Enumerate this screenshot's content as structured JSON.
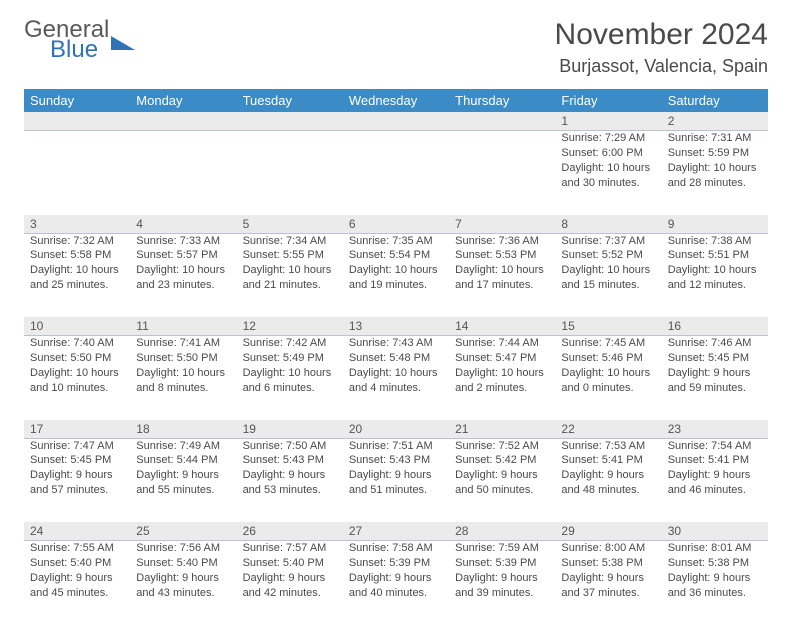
{
  "logo": {
    "text1": "General",
    "text2": "Blue"
  },
  "title": "November 2024",
  "location": "Burjassot, Valencia, Spain",
  "colors": {
    "header_bg": "#3b8bc6",
    "header_text": "#ffffff",
    "daynum_bg": "#ebebeb",
    "body_text": "#4a4a4a",
    "rule": "#b8c4d0"
  },
  "dayHeaders": [
    "Sunday",
    "Monday",
    "Tuesday",
    "Wednesday",
    "Thursday",
    "Friday",
    "Saturday"
  ],
  "weeks": [
    [
      null,
      null,
      null,
      null,
      null,
      {
        "n": "1",
        "sr": "7:29 AM",
        "ss": "6:00 PM",
        "dl1": "10 hours",
        "dl2": "and 30 minutes."
      },
      {
        "n": "2",
        "sr": "7:31 AM",
        "ss": "5:59 PM",
        "dl1": "10 hours",
        "dl2": "and 28 minutes."
      }
    ],
    [
      {
        "n": "3",
        "sr": "7:32 AM",
        "ss": "5:58 PM",
        "dl1": "10 hours",
        "dl2": "and 25 minutes."
      },
      {
        "n": "4",
        "sr": "7:33 AM",
        "ss": "5:57 PM",
        "dl1": "10 hours",
        "dl2": "and 23 minutes."
      },
      {
        "n": "5",
        "sr": "7:34 AM",
        "ss": "5:55 PM",
        "dl1": "10 hours",
        "dl2": "and 21 minutes."
      },
      {
        "n": "6",
        "sr": "7:35 AM",
        "ss": "5:54 PM",
        "dl1": "10 hours",
        "dl2": "and 19 minutes."
      },
      {
        "n": "7",
        "sr": "7:36 AM",
        "ss": "5:53 PM",
        "dl1": "10 hours",
        "dl2": "and 17 minutes."
      },
      {
        "n": "8",
        "sr": "7:37 AM",
        "ss": "5:52 PM",
        "dl1": "10 hours",
        "dl2": "and 15 minutes."
      },
      {
        "n": "9",
        "sr": "7:38 AM",
        "ss": "5:51 PM",
        "dl1": "10 hours",
        "dl2": "and 12 minutes."
      }
    ],
    [
      {
        "n": "10",
        "sr": "7:40 AM",
        "ss": "5:50 PM",
        "dl1": "10 hours",
        "dl2": "and 10 minutes."
      },
      {
        "n": "11",
        "sr": "7:41 AM",
        "ss": "5:50 PM",
        "dl1": "10 hours",
        "dl2": "and 8 minutes."
      },
      {
        "n": "12",
        "sr": "7:42 AM",
        "ss": "5:49 PM",
        "dl1": "10 hours",
        "dl2": "and 6 minutes."
      },
      {
        "n": "13",
        "sr": "7:43 AM",
        "ss": "5:48 PM",
        "dl1": "10 hours",
        "dl2": "and 4 minutes."
      },
      {
        "n": "14",
        "sr": "7:44 AM",
        "ss": "5:47 PM",
        "dl1": "10 hours",
        "dl2": "and 2 minutes."
      },
      {
        "n": "15",
        "sr": "7:45 AM",
        "ss": "5:46 PM",
        "dl1": "10 hours",
        "dl2": "and 0 minutes."
      },
      {
        "n": "16",
        "sr": "7:46 AM",
        "ss": "5:45 PM",
        "dl1": "9 hours",
        "dl2": "and 59 minutes."
      }
    ],
    [
      {
        "n": "17",
        "sr": "7:47 AM",
        "ss": "5:45 PM",
        "dl1": "9 hours",
        "dl2": "and 57 minutes."
      },
      {
        "n": "18",
        "sr": "7:49 AM",
        "ss": "5:44 PM",
        "dl1": "9 hours",
        "dl2": "and 55 minutes."
      },
      {
        "n": "19",
        "sr": "7:50 AM",
        "ss": "5:43 PM",
        "dl1": "9 hours",
        "dl2": "and 53 minutes."
      },
      {
        "n": "20",
        "sr": "7:51 AM",
        "ss": "5:43 PM",
        "dl1": "9 hours",
        "dl2": "and 51 minutes."
      },
      {
        "n": "21",
        "sr": "7:52 AM",
        "ss": "5:42 PM",
        "dl1": "9 hours",
        "dl2": "and 50 minutes."
      },
      {
        "n": "22",
        "sr": "7:53 AM",
        "ss": "5:41 PM",
        "dl1": "9 hours",
        "dl2": "and 48 minutes."
      },
      {
        "n": "23",
        "sr": "7:54 AM",
        "ss": "5:41 PM",
        "dl1": "9 hours",
        "dl2": "and 46 minutes."
      }
    ],
    [
      {
        "n": "24",
        "sr": "7:55 AM",
        "ss": "5:40 PM",
        "dl1": "9 hours",
        "dl2": "and 45 minutes."
      },
      {
        "n": "25",
        "sr": "7:56 AM",
        "ss": "5:40 PM",
        "dl1": "9 hours",
        "dl2": "and 43 minutes."
      },
      {
        "n": "26",
        "sr": "7:57 AM",
        "ss": "5:40 PM",
        "dl1": "9 hours",
        "dl2": "and 42 minutes."
      },
      {
        "n": "27",
        "sr": "7:58 AM",
        "ss": "5:39 PM",
        "dl1": "9 hours",
        "dl2": "and 40 minutes."
      },
      {
        "n": "28",
        "sr": "7:59 AM",
        "ss": "5:39 PM",
        "dl1": "9 hours",
        "dl2": "and 39 minutes."
      },
      {
        "n": "29",
        "sr": "8:00 AM",
        "ss": "5:38 PM",
        "dl1": "9 hours",
        "dl2": "and 37 minutes."
      },
      {
        "n": "30",
        "sr": "8:01 AM",
        "ss": "5:38 PM",
        "dl1": "9 hours",
        "dl2": "and 36 minutes."
      }
    ]
  ],
  "labels": {
    "sunrise": "Sunrise:",
    "sunset": "Sunset:",
    "daylight": "Daylight:"
  }
}
